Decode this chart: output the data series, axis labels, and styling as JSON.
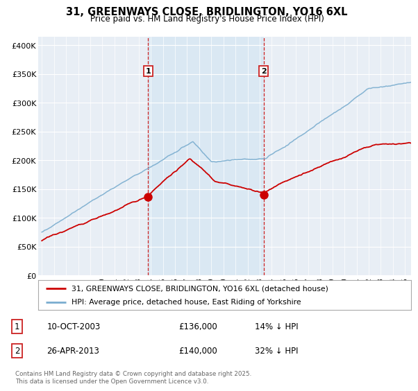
{
  "title": "31, GREENWAYS CLOSE, BRIDLINGTON, YO16 6XL",
  "subtitle": "Price paid vs. HM Land Registry's House Price Index (HPI)",
  "ylabel_ticks": [
    "£0",
    "£50K",
    "£100K",
    "£150K",
    "£200K",
    "£250K",
    "£300K",
    "£350K",
    "£400K"
  ],
  "ytick_values": [
    0,
    50000,
    100000,
    150000,
    200000,
    250000,
    300000,
    350000,
    400000
  ],
  "ylim": [
    0,
    415000
  ],
  "xlim_start": 1994.7,
  "xlim_end": 2025.5,
  "red_color": "#cc0000",
  "blue_color": "#7aadcf",
  "shade_color": "#d8e8f3",
  "background_color": "#e8eef5",
  "purchase1": {
    "date_year": 2003.78,
    "price": 136000,
    "label": "1",
    "hpi_pct": "14% ↓ HPI",
    "date_str": "10-OCT-2003"
  },
  "purchase2": {
    "date_year": 2013.32,
    "price": 140000,
    "label": "2",
    "hpi_pct": "32% ↓ HPI",
    "date_str": "26-APR-2013"
  },
  "legend_line1": "31, GREENWAYS CLOSE, BRIDLINGTON, YO16 6XL (detached house)",
  "legend_line2": "HPI: Average price, detached house, East Riding of Yorkshire",
  "footnote": "Contains HM Land Registry data © Crown copyright and database right 2025.\nThis data is licensed under the Open Government Licence v3.0.",
  "xticks": [
    1995,
    1996,
    1997,
    1998,
    1999,
    2000,
    2001,
    2002,
    2003,
    2004,
    2005,
    2006,
    2007,
    2008,
    2009,
    2010,
    2011,
    2012,
    2013,
    2014,
    2015,
    2016,
    2017,
    2018,
    2019,
    2020,
    2021,
    2022,
    2023,
    2024,
    2025
  ]
}
